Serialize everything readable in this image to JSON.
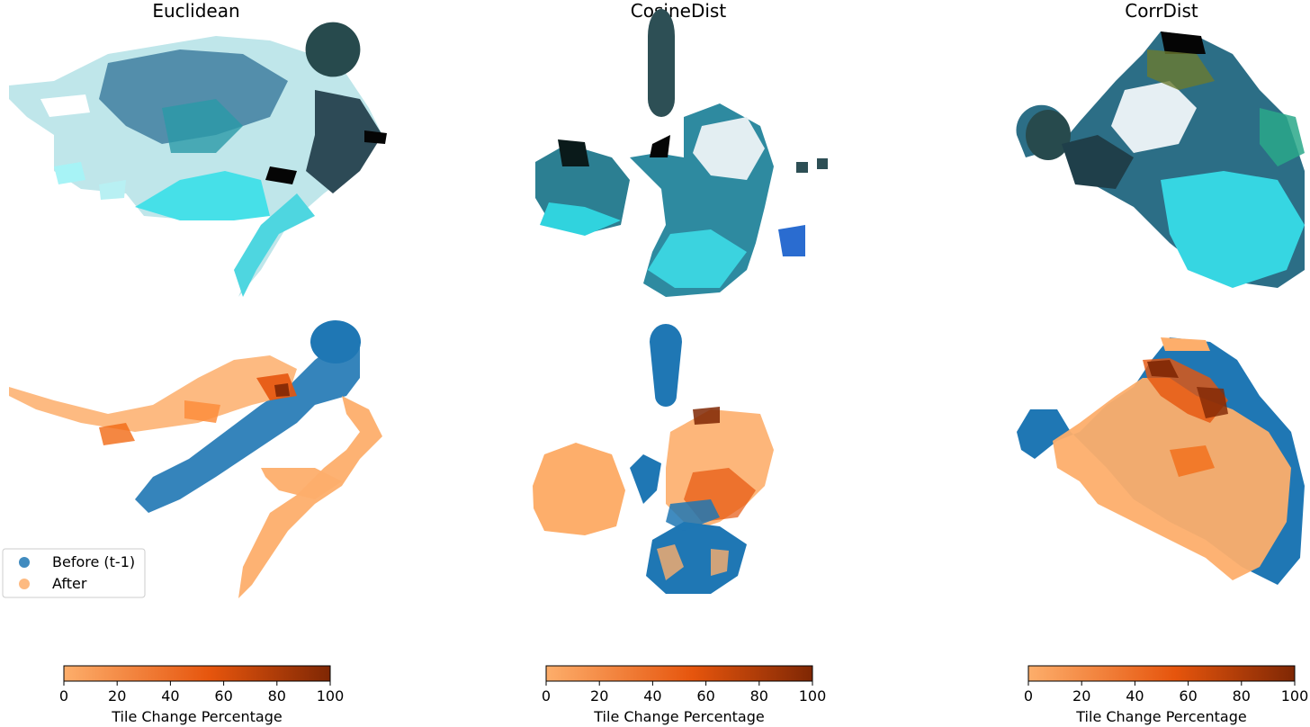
{
  "colors": {
    "before": "#1f77b4",
    "after": "#fdae6b",
    "cmap_low": "#fdae6b",
    "cmap_mid": "#e6550d",
    "cmap_high": "#7f2704"
  },
  "legend": {
    "before_label": "Before (t-1)",
    "after_label": "After",
    "placement": "lower-left"
  },
  "colorbar": {
    "label": "Tile Change Percentage",
    "ticks": [
      "0",
      "20",
      "40",
      "60",
      "80",
      "100"
    ]
  },
  "chart_data": [
    {
      "type": "scatter",
      "title": "Euclidean",
      "grid": false,
      "axes_visible": false,
      "colorbar_range": [
        0,
        100
      ],
      "series": [
        {
          "name": "Before (t-1)",
          "points": [
            [
              0.3,
              0.1
            ],
            [
              0.35,
              0.2
            ],
            [
              0.4,
              0.3
            ],
            [
              0.45,
              0.35
            ],
            [
              0.5,
              0.45
            ],
            [
              0.55,
              0.55
            ],
            [
              0.6,
              0.65
            ],
            [
              0.65,
              0.75
            ],
            [
              0.7,
              0.85
            ],
            [
              0.72,
              0.9
            ]
          ]
        },
        {
          "name": "After",
          "points": [
            [
              0.0,
              0.75
            ],
            [
              0.1,
              0.7
            ],
            [
              0.2,
              0.75
            ],
            [
              0.3,
              0.8
            ],
            [
              0.4,
              0.85
            ],
            [
              0.7,
              0.5
            ],
            [
              0.75,
              0.4
            ],
            [
              0.7,
              0.3
            ],
            [
              0.6,
              0.2
            ],
            [
              0.55,
              0.0
            ]
          ]
        }
      ]
    },
    {
      "type": "scatter",
      "title": "CosineDist",
      "grid": false,
      "axes_visible": false,
      "colorbar_range": [
        0,
        100
      ],
      "series": [
        {
          "name": "Before (t-1)",
          "points": [
            [
              0.45,
              0.95
            ],
            [
              0.45,
              0.85
            ],
            [
              0.45,
              0.78
            ],
            [
              0.5,
              0.3
            ],
            [
              0.55,
              0.2
            ],
            [
              0.6,
              0.1
            ],
            [
              0.55,
              0.05
            ],
            [
              0.65,
              0.25
            ]
          ]
        },
        {
          "name": "After",
          "points": [
            [
              0.1,
              0.35
            ],
            [
              0.15,
              0.3
            ],
            [
              0.2,
              0.35
            ],
            [
              0.55,
              0.6
            ],
            [
              0.6,
              0.55
            ],
            [
              0.65,
              0.5
            ],
            [
              0.6,
              0.45
            ],
            [
              0.55,
              0.4
            ]
          ]
        }
      ]
    },
    {
      "type": "scatter",
      "title": "CorrDist",
      "grid": false,
      "axes_visible": false,
      "colorbar_range": [
        0,
        100
      ],
      "series": [
        {
          "name": "Before (t-1)",
          "points": [
            [
              0.05,
              0.6
            ],
            [
              0.1,
              0.55
            ],
            [
              0.2,
              0.35
            ],
            [
              0.4,
              0.25
            ],
            [
              0.6,
              0.2
            ],
            [
              0.8,
              0.15
            ],
            [
              0.95,
              0.35
            ],
            [
              0.9,
              0.55
            ]
          ]
        },
        {
          "name": "After",
          "points": [
            [
              0.3,
              0.55
            ],
            [
              0.4,
              0.6
            ],
            [
              0.5,
              0.7
            ],
            [
              0.6,
              0.8
            ],
            [
              0.5,
              0.45
            ],
            [
              0.6,
              0.4
            ],
            [
              0.7,
              0.35
            ],
            [
              0.8,
              0.3
            ]
          ]
        }
      ]
    }
  ]
}
